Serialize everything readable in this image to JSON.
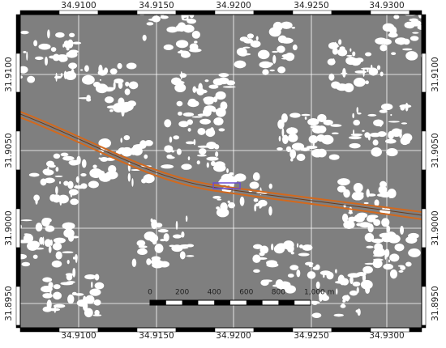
{
  "map": {
    "x_labels": [
      "34.9100",
      "34.9150",
      "34.9200",
      "34.9250",
      "34.9300"
    ],
    "y_labels": [
      "31.9100",
      "31.9050",
      "31.9000",
      "31.8950"
    ],
    "scale_bar": {
      "labels": [
        "0",
        "200",
        "400",
        "600",
        "800",
        "1,000 m"
      ]
    }
  }
}
